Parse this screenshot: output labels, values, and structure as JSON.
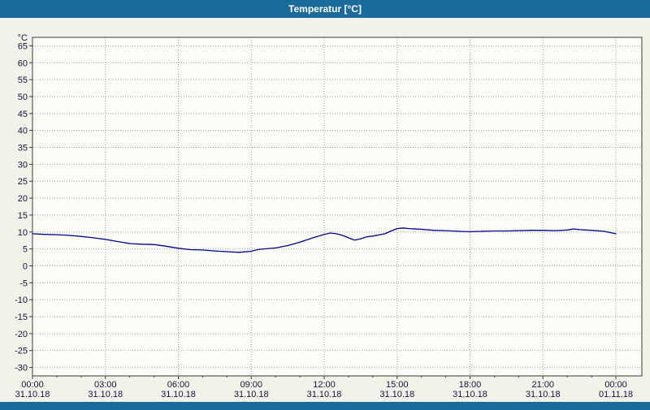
{
  "window": {
    "title": "Temperatur [°C]"
  },
  "colors": {
    "title_bar": "#1a6a9c",
    "outer_bg": "#f2f2ea",
    "plot_bg": "#fdfdf7",
    "grid": "#a0a0a0",
    "frame": "#3a3a3a",
    "label": "#14143c",
    "line": "#00008c"
  },
  "chart_data": {
    "type": "line",
    "title": "Temperatur [°C]",
    "ylabel": "°C",
    "xlabel": "",
    "ylim": [
      -32.5,
      67.5
    ],
    "xlim": [
      0,
      24
    ],
    "grid": "dotted",
    "y_ticks": [
      65,
      60,
      55,
      50,
      45,
      40,
      35,
      30,
      25,
      20,
      15,
      10,
      5,
      0,
      -5,
      -10,
      -15,
      -20,
      -25,
      -30
    ],
    "x_ticks": [
      {
        "hour": 0,
        "time": "00:00",
        "date": "31.10.18"
      },
      {
        "hour": 3,
        "time": "03:00",
        "date": "31.10.18"
      },
      {
        "hour": 6,
        "time": "06:00",
        "date": "31.10.18"
      },
      {
        "hour": 9,
        "time": "09:00",
        "date": "31.10.18"
      },
      {
        "hour": 12,
        "time": "12:00",
        "date": "31.10.18"
      },
      {
        "hour": 15,
        "time": "15:00",
        "date": "31.10.18"
      },
      {
        "hour": 18,
        "time": "18:00",
        "date": "31.10.18"
      },
      {
        "hour": 21,
        "time": "21:00",
        "date": "31.10.18"
      },
      {
        "hour": 24,
        "time": "00:00",
        "date": "01.11.18"
      }
    ],
    "series": [
      {
        "name": "Temperatur",
        "color": "#00008c",
        "points": [
          [
            0,
            9.5
          ],
          [
            0.5,
            9.3
          ],
          [
            1,
            9.2
          ],
          [
            1.5,
            9.0
          ],
          [
            2,
            8.7
          ],
          [
            2.5,
            8.3
          ],
          [
            3,
            7.8
          ],
          [
            3.5,
            7.2
          ],
          [
            4,
            6.6
          ],
          [
            4.5,
            6.4
          ],
          [
            5,
            6.3
          ],
          [
            5.5,
            5.8
          ],
          [
            6,
            5.2
          ],
          [
            6.5,
            4.8
          ],
          [
            7,
            4.7
          ],
          [
            7.5,
            4.4
          ],
          [
            8,
            4.2
          ],
          [
            8.5,
            4.0
          ],
          [
            9,
            4.3
          ],
          [
            9.25,
            4.8
          ],
          [
            9.5,
            5.0
          ],
          [
            10,
            5.3
          ],
          [
            10.5,
            6.0
          ],
          [
            11,
            7.0
          ],
          [
            11.5,
            8.2
          ],
          [
            12,
            9.3
          ],
          [
            12.25,
            9.7
          ],
          [
            12.5,
            9.5
          ],
          [
            12.75,
            9.0
          ],
          [
            13,
            8.3
          ],
          [
            13.25,
            7.6
          ],
          [
            13.5,
            8.0
          ],
          [
            13.75,
            8.6
          ],
          [
            14,
            8.8
          ],
          [
            14.5,
            9.5
          ],
          [
            14.75,
            10.3
          ],
          [
            15,
            11.0
          ],
          [
            15.25,
            11.2
          ],
          [
            15.5,
            11.0
          ],
          [
            16,
            10.8
          ],
          [
            16.5,
            10.5
          ],
          [
            17,
            10.4
          ],
          [
            17.5,
            10.2
          ],
          [
            18,
            10.1
          ],
          [
            18.5,
            10.2
          ],
          [
            19,
            10.3
          ],
          [
            19.5,
            10.3
          ],
          [
            20,
            10.4
          ],
          [
            20.5,
            10.5
          ],
          [
            21,
            10.5
          ],
          [
            21.5,
            10.4
          ],
          [
            22,
            10.6
          ],
          [
            22.25,
            10.9
          ],
          [
            22.5,
            10.7
          ],
          [
            23,
            10.5
          ],
          [
            23.5,
            10.2
          ],
          [
            24,
            9.5
          ]
        ]
      }
    ]
  }
}
